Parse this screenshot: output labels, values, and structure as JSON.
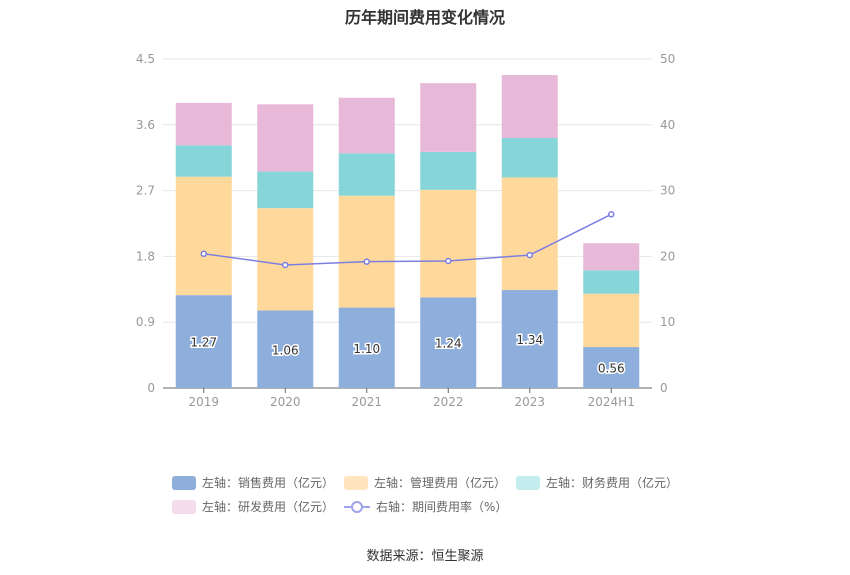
{
  "chart_data": {
    "type": "bar",
    "title": "历年期间费用变化情况",
    "categories": [
      "2019",
      "2020",
      "2021",
      "2022",
      "2023",
      "2024H1"
    ],
    "left_axis": {
      "ticks": [
        "0",
        "0.9",
        "1.8",
        "2.7",
        "3.6",
        "4.5"
      ],
      "ylim": [
        0,
        4.5
      ]
    },
    "right_axis": {
      "ticks": [
        "0",
        "10",
        "20",
        "30",
        "40",
        "50"
      ],
      "ylim": [
        0,
        50
      ]
    },
    "series": [
      {
        "name": "左轴：销售费用（亿元）",
        "type": "bar",
        "axis": "left",
        "color": "#8eaedb",
        "values": [
          1.27,
          1.06,
          1.1,
          1.24,
          1.34,
          0.56
        ],
        "labels": [
          "1.27",
          "1.06",
          "1.10",
          "1.24",
          "1.34",
          "0.56"
        ]
      },
      {
        "name": "左轴：管理费用（亿元）",
        "type": "bar",
        "axis": "left",
        "color": "#ffd99b",
        "values": [
          1.62,
          1.4,
          1.53,
          1.47,
          1.54,
          0.73
        ]
      },
      {
        "name": "左轴：财务费用（亿元）",
        "type": "bar",
        "axis": "left",
        "color": "#86d5d9",
        "values": [
          0.43,
          0.5,
          0.58,
          0.52,
          0.54,
          0.32
        ]
      },
      {
        "name": "左轴：研发费用（亿元）",
        "type": "bar",
        "axis": "left",
        "color": "#e8b8d8",
        "values": [
          0.58,
          0.92,
          0.76,
          0.94,
          0.86,
          0.37
        ]
      },
      {
        "name": "右轴：期间费用率（%）",
        "type": "line",
        "axis": "right",
        "color": "#7b7fe0",
        "values": [
          20.4,
          18.7,
          19.2,
          19.3,
          20.2,
          26.4
        ]
      }
    ],
    "legend_position": "bottom",
    "grid": true
  },
  "legend": [
    {
      "label": "左轴：销售费用（亿元）",
      "color": "#8eaedb",
      "kind": "bar"
    },
    {
      "label": "左轴：管理费用（亿元）",
      "color": "#ffe4bd",
      "kind": "bar"
    },
    {
      "label": "左轴：财务费用（亿元）",
      "color": "#c3ecee",
      "kind": "bar"
    },
    {
      "label": "左轴：研发费用（亿元）",
      "color": "#f4dced",
      "kind": "bar"
    },
    {
      "label": "右轴：期间费用率（%）",
      "color": "#9fa3ec",
      "kind": "line"
    }
  ],
  "source": "数据来源：恒生聚源"
}
